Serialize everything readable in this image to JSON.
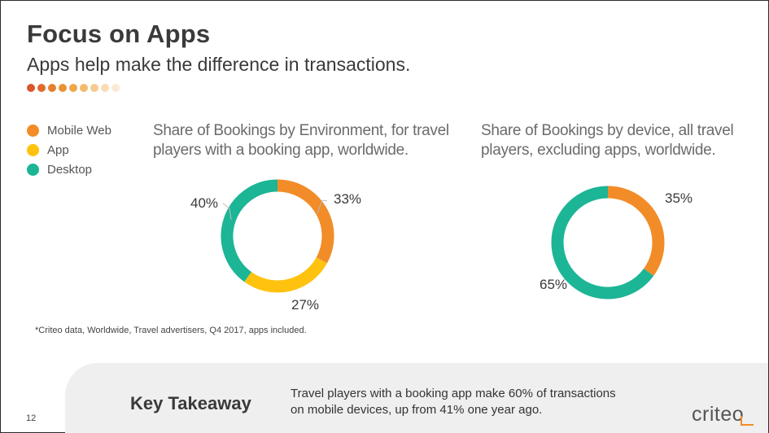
{
  "header": {
    "title": "Focus on Apps",
    "subtitle": "Apps help make the difference in transactions."
  },
  "colors": {
    "mobile_web": "#F28C28",
    "app": "#FFC20E",
    "desktop": "#1CB596",
    "dots": [
      "#D9572B",
      "#E06A2C",
      "#E67E2E",
      "#EB9233",
      "#EFA64A",
      "#F3BA6C",
      "#F6CB90",
      "#F9DCB3",
      "#FBEAD3"
    ]
  },
  "legend": [
    {
      "label": "Mobile Web",
      "color": "#F28C28"
    },
    {
      "label": "App",
      "color": "#FFC20E"
    },
    {
      "label": "Desktop",
      "color": "#1CB596"
    }
  ],
  "chart_data": [
    {
      "type": "pie",
      "title": "Share of Bookings by Environment, for travel players with a booking app, worldwide.",
      "categories": [
        "Mobile Web",
        "App",
        "Desktop"
      ],
      "values": [
        33,
        27,
        40
      ],
      "labels": [
        "33%",
        "27%",
        "40%"
      ],
      "colors": [
        "#F28C28",
        "#FFC20E",
        "#1CB596"
      ],
      "legend": "left"
    },
    {
      "type": "pie",
      "title": "Share of Bookings by device, all travel players, excluding apps, worldwide.",
      "categories": [
        "Mobile Web",
        "Desktop"
      ],
      "values": [
        35,
        65
      ],
      "labels": [
        "35%",
        "65%"
      ],
      "colors": [
        "#F28C28",
        "#1CB596"
      ],
      "legend": "left"
    }
  ],
  "footnote": "*Criteo data, Worldwide, Travel advertisers, Q4 2017, apps included.",
  "takeaway": {
    "label": "Key Takeaway",
    "text": "Travel players with a booking app make 60% of transactions on mobile devices, up from 41% one year ago."
  },
  "page_number": "12",
  "logo_text": "criteo"
}
